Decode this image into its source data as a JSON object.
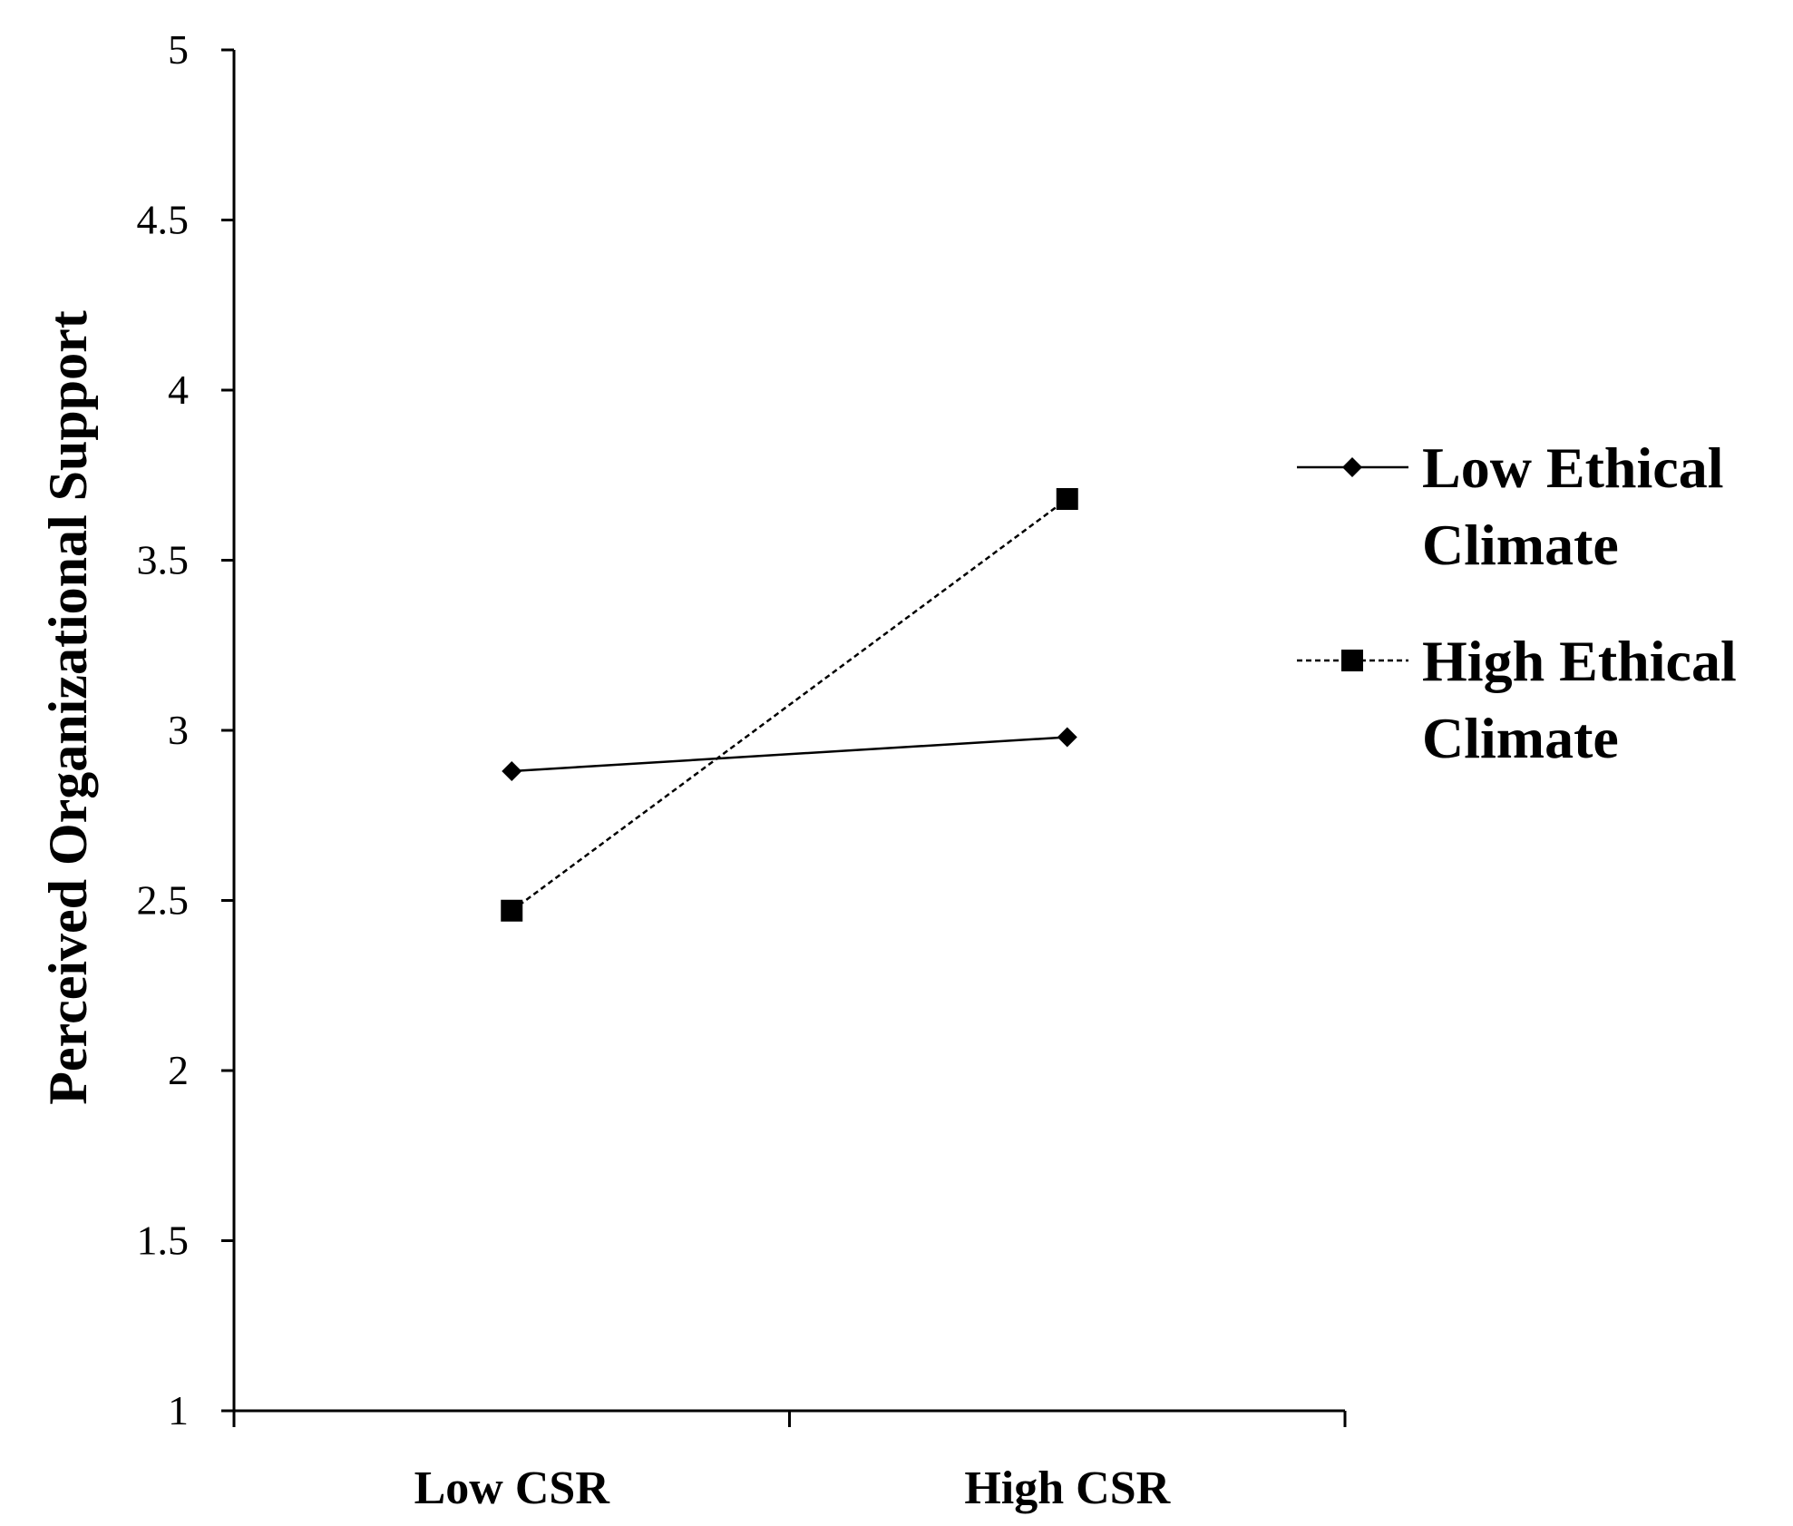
{
  "chart_data": {
    "type": "line",
    "title": "",
    "xlabel": "",
    "ylabel": "Perceived Organizational  Support",
    "categories": [
      "Low CSR",
      "High CSR"
    ],
    "ylim": [
      1,
      5
    ],
    "yticks": [
      "1",
      "1.5",
      "2",
      "2.5",
      "3",
      "3.5",
      "4",
      "4.5",
      "5"
    ],
    "grid": false,
    "legend_position": "right",
    "series": [
      {
        "name": "Low Ethical Climate",
        "name_lines": [
          "Low Ethical",
          "Climate"
        ],
        "values": [
          2.88,
          2.98
        ],
        "line_style": "solid",
        "marker": "diamond",
        "color": "#000000"
      },
      {
        "name": "High Ethical Climate",
        "name_lines": [
          "High Ethical",
          "Climate"
        ],
        "values": [
          2.47,
          3.68
        ],
        "line_style": "dashed",
        "marker": "square",
        "color": "#000000"
      }
    ]
  }
}
